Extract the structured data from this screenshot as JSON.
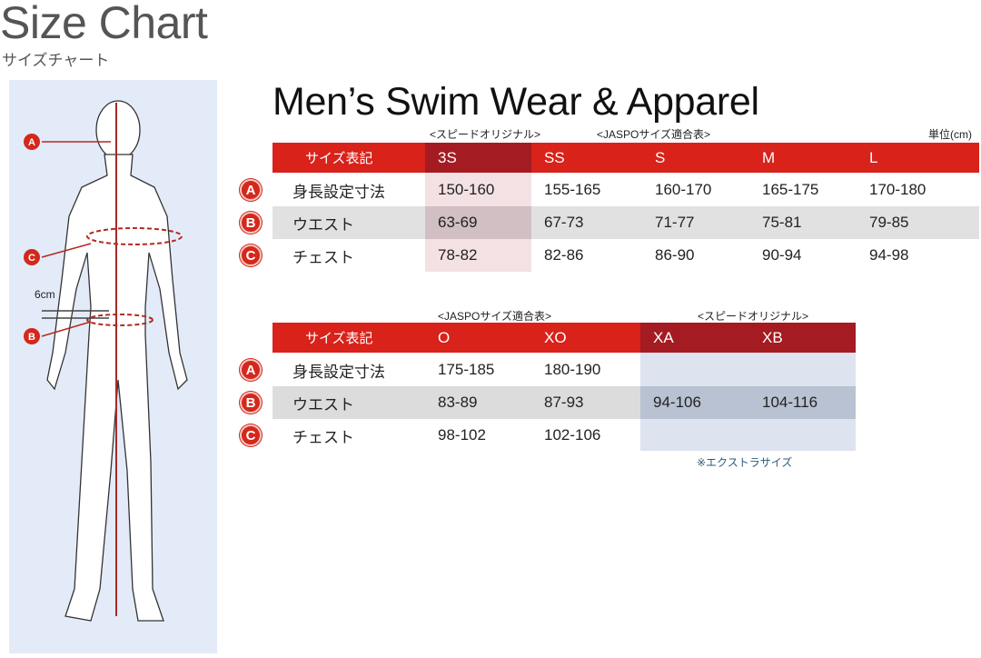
{
  "title": "Size Chart",
  "subtitle": "サイズチャート",
  "figure": {
    "labels": [
      "A",
      "C",
      "6cm",
      "B"
    ]
  },
  "heading": "Men’s Swim Wear & Apparel",
  "unit": "単位(cm)",
  "colors": {
    "header_red": "#d8221a",
    "header_dark_red": "#a41b22",
    "highlight_pink": "#f3e1e4",
    "extra_blue": "#dde3ef",
    "badge_red": "#d4281c"
  },
  "table1": {
    "group_labels": [
      "<スピードオリジナル>",
      "<JASPOサイズ適合表>"
    ],
    "header": [
      "サイズ表記",
      "3S",
      "SS",
      "S",
      "M",
      "L"
    ],
    "rows": [
      {
        "badge": "A",
        "label": "身長設定寸法",
        "values": [
          "150-160",
          "155-165",
          "160-170",
          "165-175",
          "170-180"
        ]
      },
      {
        "badge": "B",
        "label": "ウエスト",
        "values": [
          "63-69",
          "67-73",
          "71-77",
          "75-81",
          "79-85"
        ]
      },
      {
        "badge": "C",
        "label": "チェスト",
        "values": [
          "78-82",
          "82-86",
          "86-90",
          "90-94",
          "94-98"
        ]
      }
    ]
  },
  "table2": {
    "group_labels": [
      "<JASPOサイズ適合表>",
      "<スピードオリジナル>"
    ],
    "header": [
      "サイズ表記",
      "O",
      "XO",
      "XA",
      "XB"
    ],
    "rows": [
      {
        "badge": "A",
        "label": "身長設定寸法",
        "values": [
          "175-185",
          "180-190",
          "",
          ""
        ]
      },
      {
        "badge": "B",
        "label": "ウエスト",
        "values": [
          "83-89",
          "87-93",
          "94-106",
          "104-116"
        ]
      },
      {
        "badge": "C",
        "label": "チェスト",
        "values": [
          "98-102",
          "102-106",
          "",
          ""
        ]
      }
    ],
    "footnote": "※エクストラサイズ"
  }
}
